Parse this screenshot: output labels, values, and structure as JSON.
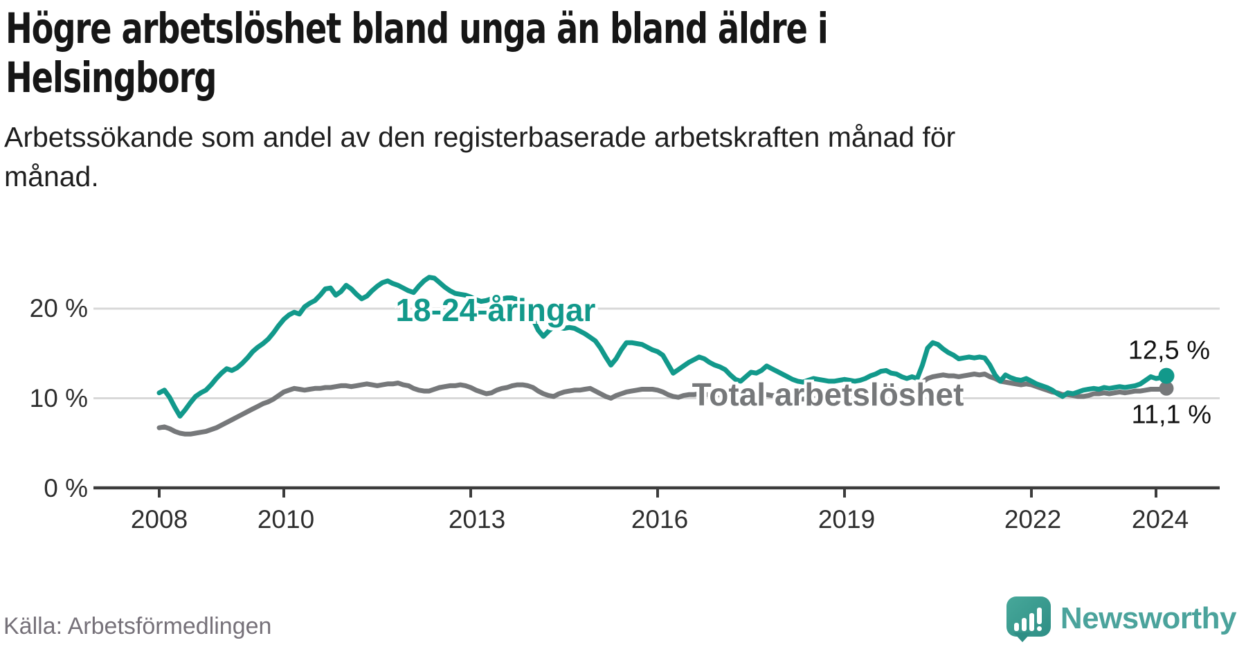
{
  "title": {
    "line1": "Högre arbetslöshet bland unga än bland äldre i",
    "line2": "Helsingborg"
  },
  "subtitle": {
    "line1": "Arbetssökande som andel av den registerbaserade arbetskraften månad för",
    "line2": "månad."
  },
  "source_label": "Källa: Arbetsförmedlingen",
  "brand_name": "Newsworthy",
  "colors": {
    "youth_line": "#12998b",
    "total_line": "#76787a",
    "grid": "#d8d8d8",
    "axis": "#3c3c3c",
    "text": "#2e2e2e"
  },
  "chart_data": {
    "type": "line",
    "unit": "%",
    "x_monthly": {
      "start": "2008-01",
      "end": "2024-03"
    },
    "xticks": [
      2008,
      2010,
      2013,
      2016,
      2019,
      2022,
      2024
    ],
    "yticks": [
      0,
      10,
      20
    ],
    "ytick_labels": [
      "0 %",
      "10 %",
      "20 %"
    ],
    "ylim": [
      0,
      24.5
    ],
    "grid": "horizontal",
    "series": [
      {
        "name": "18-24-åringar",
        "color": "#12998b",
        "end_value_label": "12,5 %",
        "values": [
          10.6,
          10.9,
          10.1,
          9.0,
          8.0,
          8.7,
          9.5,
          10.2,
          10.6,
          10.9,
          11.5,
          12.2,
          12.8,
          13.3,
          13.1,
          13.4,
          13.9,
          14.5,
          15.2,
          15.7,
          16.1,
          16.6,
          17.3,
          18.1,
          18.8,
          19.3,
          19.6,
          19.4,
          20.2,
          20.6,
          20.9,
          21.5,
          22.2,
          22.3,
          21.5,
          21.9,
          22.6,
          22.2,
          21.6,
          21.1,
          21.4,
          22.0,
          22.5,
          22.9,
          23.1,
          22.8,
          22.6,
          22.3,
          22.0,
          21.8,
          22.5,
          23.1,
          23.5,
          23.4,
          22.9,
          22.4,
          22.0,
          21.7,
          21.6,
          21.5,
          21.3,
          21.0,
          20.8,
          20.9,
          21.1,
          21.2,
          21.1,
          21.2,
          21.2,
          21.0,
          20.7,
          20.0,
          18.8,
          17.6,
          16.9,
          17.5,
          18.0,
          17.9,
          17.8,
          17.9,
          17.8,
          17.5,
          17.2,
          16.8,
          16.4,
          15.6,
          14.6,
          13.7,
          14.4,
          15.4,
          16.2,
          16.2,
          16.1,
          16.0,
          15.7,
          15.4,
          15.2,
          14.8,
          13.8,
          12.8,
          13.2,
          13.6,
          14.0,
          14.3,
          14.6,
          14.4,
          14.0,
          13.7,
          13.5,
          13.2,
          12.6,
          12.1,
          11.9,
          12.4,
          12.9,
          12.8,
          13.1,
          13.6,
          13.3,
          13.0,
          12.7,
          12.4,
          12.1,
          11.9,
          11.8,
          12.0,
          12.2,
          12.1,
          12.0,
          11.9,
          11.9,
          12.0,
          12.1,
          12.0,
          11.9,
          12.0,
          12.2,
          12.5,
          12.7,
          13.0,
          13.1,
          12.8,
          12.7,
          12.4,
          12.2,
          12.4,
          12.2,
          13.7,
          15.6,
          16.2,
          16.0,
          15.5,
          15.1,
          14.8,
          14.4,
          14.5,
          14.6,
          14.5,
          14.6,
          14.5,
          13.7,
          12.6,
          11.9,
          12.6,
          12.3,
          12.1,
          12.0,
          12.2,
          11.9,
          11.6,
          11.4,
          11.2,
          10.9,
          10.5,
          10.2,
          10.6,
          10.5,
          10.7,
          10.9,
          11.0,
          11.1,
          11.0,
          11.2,
          11.1,
          11.2,
          11.3,
          11.2,
          11.3,
          11.4,
          11.6,
          12.0,
          12.4,
          12.2,
          12.3,
          12.5
        ]
      },
      {
        "name": "Total arbetslöshet",
        "color": "#76787a",
        "end_value_label": "11,1 %",
        "values": [
          6.7,
          6.8,
          6.6,
          6.3,
          6.1,
          6.0,
          6.0,
          6.1,
          6.2,
          6.3,
          6.5,
          6.7,
          7.0,
          7.3,
          7.6,
          7.9,
          8.2,
          8.5,
          8.8,
          9.1,
          9.4,
          9.6,
          9.9,
          10.3,
          10.7,
          10.9,
          11.1,
          11.0,
          10.9,
          11.0,
          11.1,
          11.1,
          11.2,
          11.2,
          11.3,
          11.4,
          11.4,
          11.3,
          11.4,
          11.5,
          11.6,
          11.5,
          11.4,
          11.5,
          11.6,
          11.6,
          11.7,
          11.5,
          11.4,
          11.1,
          10.9,
          10.8,
          10.8,
          11.0,
          11.2,
          11.3,
          11.4,
          11.4,
          11.5,
          11.4,
          11.2,
          10.9,
          10.7,
          10.5,
          10.6,
          10.9,
          11.1,
          11.2,
          11.4,
          11.5,
          11.5,
          11.4,
          11.2,
          10.8,
          10.5,
          10.3,
          10.2,
          10.5,
          10.7,
          10.8,
          10.9,
          10.9,
          11.0,
          11.1,
          10.8,
          10.5,
          10.2,
          10.0,
          10.3,
          10.5,
          10.7,
          10.8,
          10.9,
          11.0,
          11.0,
          11.0,
          10.9,
          10.7,
          10.4,
          10.2,
          10.1,
          10.3,
          10.4,
          10.4,
          10.5,
          10.4,
          10.4,
          10.5,
          10.4,
          10.3,
          10.2,
          10.1,
          10.0,
          10.2,
          10.4,
          10.3,
          10.4,
          10.4,
          10.3,
          10.3,
          10.2,
          10.1,
          10.0,
          9.9,
          9.9,
          10.0,
          10.1,
          10.1,
          10.0,
          10.0,
          10.1,
          10.2,
          10.3,
          10.2,
          10.2,
          10.3,
          10.4,
          10.6,
          10.7,
          10.8,
          10.8,
          10.8,
          10.9,
          10.9,
          10.9,
          10.8,
          11.0,
          11.8,
          12.2,
          12.4,
          12.5,
          12.6,
          12.5,
          12.5,
          12.4,
          12.5,
          12.6,
          12.7,
          12.6,
          12.7,
          12.4,
          12.2,
          11.9,
          11.8,
          11.7,
          11.6,
          11.5,
          11.6,
          11.5,
          11.3,
          11.1,
          10.9,
          10.7,
          10.6,
          10.4,
          10.4,
          10.3,
          10.2,
          10.2,
          10.3,
          10.5,
          10.5,
          10.6,
          10.5,
          10.6,
          10.7,
          10.6,
          10.7,
          10.8,
          10.8,
          10.9,
          11.0,
          11.0,
          11.0,
          11.1
        ]
      }
    ]
  }
}
